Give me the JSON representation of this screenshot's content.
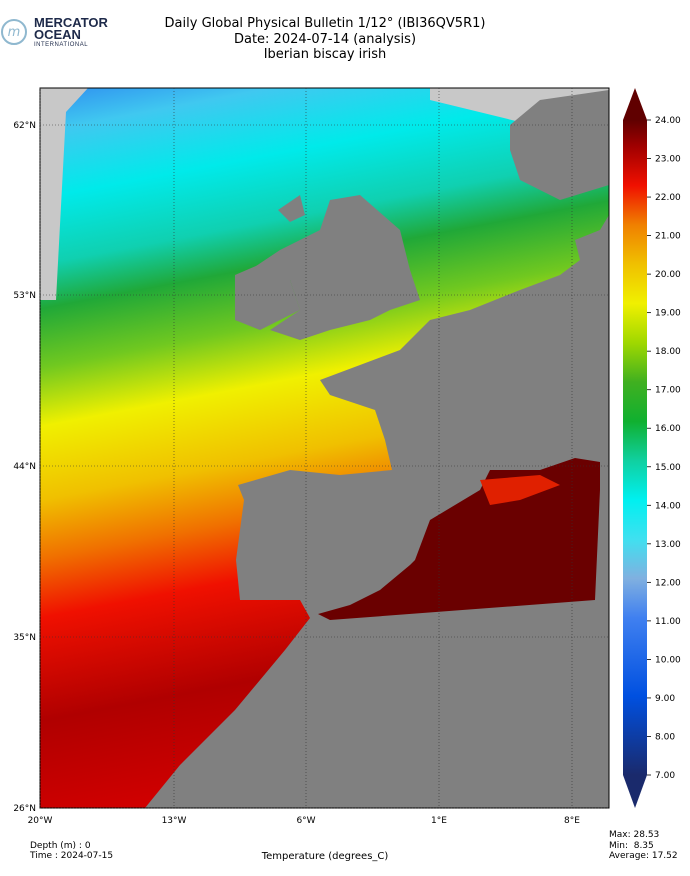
{
  "logo": {
    "line1": "MERCATOR",
    "line2": "OCEAN",
    "line3": "INTERNATIONAL"
  },
  "header": {
    "title": "Daily Global Physical Bulletin 1/12° (IBI36QV5R1)",
    "date": "Date: 2024-07-14 (analysis)",
    "region": "Iberian biscay irish"
  },
  "map": {
    "lat_labels": [
      "62°N",
      "53°N",
      "44°N",
      "35°N",
      "26°N"
    ],
    "lon_labels": [
      "20°W",
      "13°W",
      "6°W",
      "1°E",
      "8°E"
    ]
  },
  "colorbar": {
    "label": "Temperature (degrees_C)",
    "lim": [
      7,
      24
    ],
    "ticks": [
      {
        "value": 7,
        "label": "7.00"
      },
      {
        "value": 8,
        "label": "8.00"
      },
      {
        "value": 9,
        "label": "9.00"
      },
      {
        "value": 10,
        "label": "10.00"
      },
      {
        "value": 11,
        "label": "11.00"
      },
      {
        "value": 12,
        "label": "12.00"
      },
      {
        "value": 13,
        "label": "13.00"
      },
      {
        "value": 14,
        "label": "14.00"
      },
      {
        "value": 15,
        "label": "15.00"
      },
      {
        "value": 16,
        "label": "16.00"
      },
      {
        "value": 17,
        "label": "17.00"
      },
      {
        "value": 18,
        "label": "18.00"
      },
      {
        "value": 19,
        "label": "19.00"
      },
      {
        "value": 20,
        "label": "20.00"
      },
      {
        "value": 21,
        "label": "21.00"
      },
      {
        "value": 22,
        "label": "22.00"
      },
      {
        "value": 23,
        "label": "23.00"
      },
      {
        "value": 24,
        "label": "24.00"
      }
    ]
  },
  "footer": {
    "depth": "Depth (m) : 0",
    "time": "Time : 2024-07-15",
    "max": "Max: 28.53",
    "min": "Min:  8.35",
    "average": "Average: 17.52"
  }
}
